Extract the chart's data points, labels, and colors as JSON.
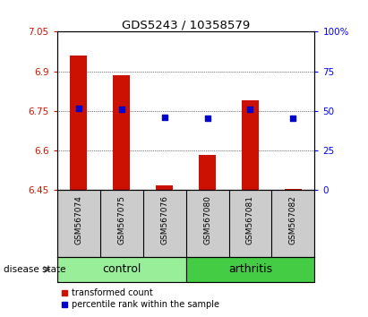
{
  "title": "GDS5243 / 10358579",
  "samples": [
    "GSM567074",
    "GSM567075",
    "GSM567076",
    "GSM567080",
    "GSM567081",
    "GSM567082"
  ],
  "bar_values": [
    6.96,
    6.885,
    6.47,
    6.585,
    6.79,
    6.455
  ],
  "bar_bottom": 6.45,
  "percentile_values": [
    6.76,
    6.755,
    6.725,
    6.724,
    6.755,
    6.724
  ],
  "ylim_left": [
    6.45,
    7.05
  ],
  "ylim_right": [
    0,
    100
  ],
  "yticks_left": [
    6.45,
    6.6,
    6.75,
    6.9,
    7.05
  ],
  "yticks_right": [
    0,
    25,
    50,
    75,
    100
  ],
  "ytick_labels_left": [
    "6.45",
    "6.6",
    "6.75",
    "6.9",
    "7.05"
  ],
  "ytick_labels_right": [
    "0",
    "25",
    "50",
    "75",
    "100%"
  ],
  "bar_color": "#cc1100",
  "percentile_color": "#0000cc",
  "control_bg": "#99ee99",
  "arthritis_bg": "#44cc44",
  "sample_bg": "#cccccc",
  "group_labels": [
    "control",
    "arthritis"
  ],
  "legend_bar_label": "transformed count",
  "legend_pct_label": "percentile rank within the sample",
  "disease_state_label": "disease state"
}
